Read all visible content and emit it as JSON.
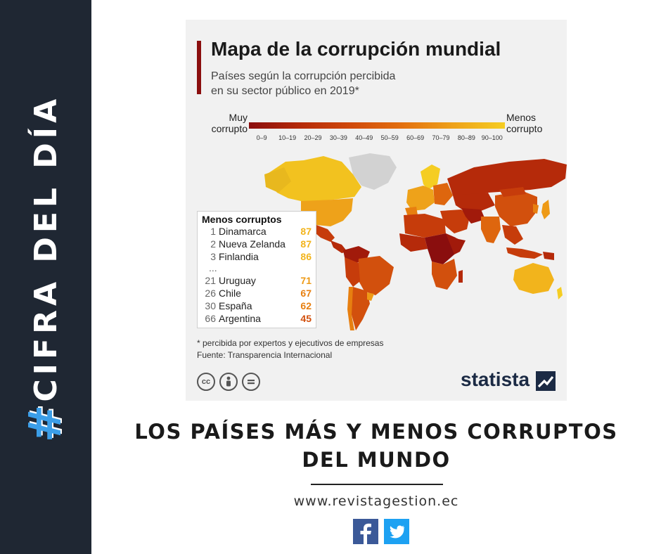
{
  "sidebar": {
    "hash": "#",
    "label": "CIFRA DEL DÍA"
  },
  "infographic": {
    "title": "Mapa de la corrupción mundial",
    "subtitle_line1": "Países según la corrupción percibida",
    "subtitle_line2": "en su sector público en 2019*",
    "legend": {
      "left_line1": "Muy",
      "left_line2": "corrupto",
      "right_line1": "Menos",
      "right_line2": "corrupto",
      "ticks": [
        "0–9",
        "10–19",
        "20–29",
        "30–39",
        "40–49",
        "50–59",
        "60–69",
        "70–79",
        "80–89",
        "90–100"
      ],
      "colors": [
        "#8a0e0e",
        "#a11a0b",
        "#b52a0a",
        "#c63c0b",
        "#d2500d",
        "#de660e",
        "#e77f10",
        "#ee9a16",
        "#f2b41c",
        "#f5cd22"
      ]
    },
    "ranking": {
      "heading": "Menos corruptos",
      "ellipsis": "...",
      "rows": [
        {
          "rank": "1",
          "country": "Dinamarca",
          "score": "87",
          "color": "#f2b41c"
        },
        {
          "rank": "2",
          "country": "Nueva Zelanda",
          "score": "87",
          "color": "#f2b41c"
        },
        {
          "rank": "3",
          "country": "Finlandia",
          "score": "86",
          "color": "#f2b41c"
        },
        {
          "rank": "21",
          "country": "Uruguay",
          "score": "71",
          "color": "#ee9a16"
        },
        {
          "rank": "26",
          "country": "Chile",
          "score": "67",
          "color": "#e77f10"
        },
        {
          "rank": "30",
          "country": "España",
          "score": "62",
          "color": "#e77f10"
        },
        {
          "rank": "66",
          "country": "Argentina",
          "score": "45",
          "color": "#d2500d"
        }
      ]
    },
    "footnote_line1": "* percibida por expertos y ejecutivos de empresas",
    "footnote_line2": "Fuente: Transparencia Internacional",
    "license_icons": [
      "cc",
      "by",
      "="
    ],
    "brand": "statista"
  },
  "headline_line1": "LOS PAÍSES MÁS Y MENOS CORRUPTOS",
  "headline_line2": "DEL MUNDO",
  "website": "www.revistagestion.ec",
  "social": {
    "facebook_color": "#3b5998",
    "twitter_color": "#1da1f2"
  }
}
